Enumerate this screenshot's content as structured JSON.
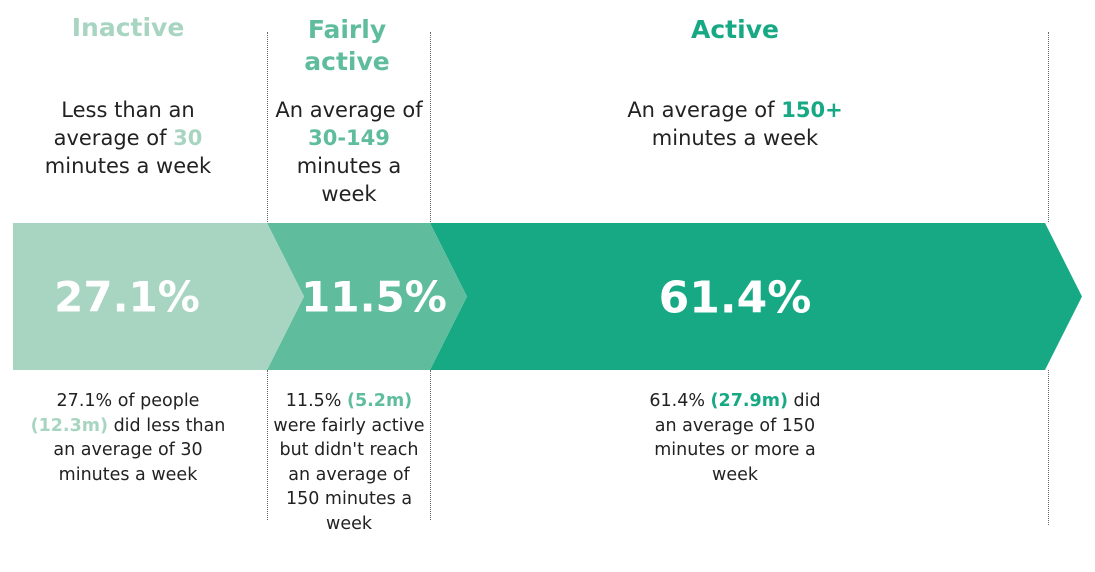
{
  "chart_data": {
    "type": "bar",
    "categories": [
      "Inactive",
      "Fairly active",
      "Active"
    ],
    "values": [
      27.1,
      11.5,
      61.4
    ],
    "value_labels": [
      "27.1%",
      "11.5%",
      "61.4%"
    ],
    "colors": [
      "#a8d5c2",
      "#5fbd9e",
      "#16a984"
    ]
  },
  "columns": [
    {
      "heading": "Inactive",
      "desc_pre": "Less than an average of ",
      "desc_hl": "30",
      "desc_post": " minutes a week",
      "note_pre": "27.1% of people ",
      "note_hl": "(12.3m)",
      "note_post": " did less than an average of 30 minutes a week"
    },
    {
      "heading": "Fairly active",
      "desc_pre": "An average of ",
      "desc_hl": "30-149",
      "desc_post": " minutes a week",
      "note_pre": "11.5% ",
      "note_hl": "(5.2m)",
      "note_post": " were fairly active but didn't reach an average of 150 minutes a week"
    },
    {
      "heading": "Active",
      "desc_pre": "An average of ",
      "desc_hl": "150+",
      "desc_post": " minutes a week",
      "note_pre": "61.4% ",
      "note_hl": "(27.9m)",
      "note_post": " did an average of 150 minutes or more a week"
    }
  ]
}
